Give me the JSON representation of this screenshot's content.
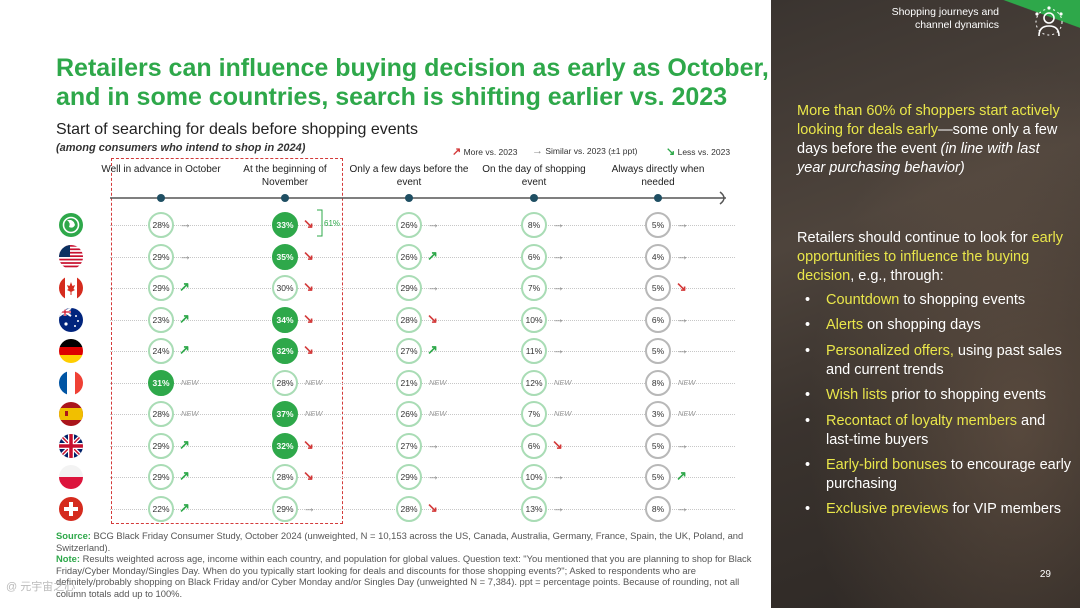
{
  "title_lines": [
    "Retailers can influence buying decision as early as October,",
    "and in some countries, search is shifting earlier vs. 2023"
  ],
  "subtitle": "Start of searching for deals before shopping events",
  "subnote": "(among consumers who intend to shop in 2024)",
  "legend": {
    "more": "More vs. 2023",
    "similar": "Similar vs. 2023 (±1 ppt)",
    "less": "Less vs. 2023"
  },
  "columns": [
    {
      "label": "Well in advance in October"
    },
    {
      "label": "At the beginning of November"
    },
    {
      "label": "Only a few days before the event"
    },
    {
      "label": "On the day of shopping event"
    },
    {
      "label": "Always directly when needed"
    }
  ],
  "bracket_label": "61%",
  "new_label": "NEW",
  "chart_data": {
    "type": "table",
    "columns": [
      "Well in advance in October",
      "At the beginning of November",
      "Only a few days before the event",
      "On the day of shopping event",
      "Always directly when needed"
    ],
    "rows": [
      {
        "flag": "globe-icon",
        "values": [
          "28%",
          "33%",
          "26%",
          "8%",
          "5%"
        ],
        "trend": [
          "same",
          "down",
          "same",
          "same",
          "same"
        ],
        "highlight": [
          false,
          true,
          false,
          false,
          false
        ]
      },
      {
        "flag": "us-flag-icon",
        "values": [
          "29%",
          "35%",
          "26%",
          "6%",
          "4%"
        ],
        "trend": [
          "same",
          "down",
          "up",
          "same",
          "same"
        ],
        "highlight": [
          false,
          true,
          false,
          false,
          false
        ]
      },
      {
        "flag": "canada-flag-icon",
        "values": [
          "29%",
          "30%",
          "29%",
          "7%",
          "5%"
        ],
        "trend": [
          "up",
          "down",
          "same",
          "same",
          "down"
        ],
        "highlight": [
          false,
          false,
          false,
          false,
          false
        ]
      },
      {
        "flag": "australia-flag-icon",
        "values": [
          "23%",
          "34%",
          "28%",
          "10%",
          "6%"
        ],
        "trend": [
          "up",
          "down",
          "down",
          "same",
          "same"
        ],
        "highlight": [
          false,
          true,
          false,
          false,
          false
        ]
      },
      {
        "flag": "germany-flag-icon",
        "values": [
          "24%",
          "32%",
          "27%",
          "11%",
          "5%"
        ],
        "trend": [
          "up",
          "down",
          "up",
          "same",
          "same"
        ],
        "highlight": [
          false,
          true,
          false,
          false,
          false
        ]
      },
      {
        "flag": "france-flag-icon",
        "values": [
          "31%",
          "28%",
          "21%",
          "12%",
          "8%"
        ],
        "trend": [
          "new",
          "new",
          "new",
          "new",
          "new"
        ],
        "highlight": [
          true,
          false,
          false,
          false,
          false
        ]
      },
      {
        "flag": "spain-flag-icon",
        "values": [
          "28%",
          "37%",
          "26%",
          "7%",
          "3%"
        ],
        "trend": [
          "new",
          "new",
          "new",
          "new",
          "new"
        ],
        "highlight": [
          false,
          true,
          false,
          false,
          false
        ]
      },
      {
        "flag": "uk-flag-icon",
        "values": [
          "29%",
          "32%",
          "27%",
          "6%",
          "5%"
        ],
        "trend": [
          "up",
          "down",
          "same",
          "down",
          "same"
        ],
        "highlight": [
          false,
          true,
          false,
          false,
          false
        ]
      },
      {
        "flag": "poland-flag-icon",
        "values": [
          "29%",
          "28%",
          "29%",
          "10%",
          "5%"
        ],
        "trend": [
          "up",
          "down",
          "same",
          "same",
          "up"
        ],
        "highlight": [
          false,
          false,
          false,
          false,
          false
        ]
      },
      {
        "flag": "switzerland-flag-icon",
        "values": [
          "22%",
          "29%",
          "28%",
          "13%",
          "8%"
        ],
        "trend": [
          "up",
          "same",
          "down",
          "same",
          "same"
        ],
        "highlight": [
          false,
          false,
          false,
          false,
          false
        ]
      }
    ]
  },
  "footer": {
    "source_label": "Source:",
    "source_text": "BCG Black Friday Consumer Study, October 2024 (unweighted, N = 10,153 across the US, Canada, Australia, Germany, France, Spain, the UK, Poland, and Switzerland).",
    "note_label": "Note:",
    "note_text": "Results weighted across age, income within each country, and population for global values. Question text: \"You mentioned that you are planning to shop for Black Friday/Cyber Monday/Singles Day. When do you typically start looking for deals and discounts for those shopping events?\"; Asked to respondents who are definitely/probably shopping on Black Friday and/or Cyber Monday and/or Singles Day (unweighted N = 7,384). ppt = percentage points. Because of rounding, not all column totals add up to 100%."
  },
  "panel": {
    "section_title": "Shopping journeys and channel dynamics",
    "p1_highlight": "More than 60% of shoppers start actively looking for deals early",
    "p1_rest": "—some only a few days before the event",
    "p1_italic": " (in line with last year purchasing behavior)",
    "p2_start": "Retailers should continue to look for ",
    "p2_highlight": "early opportunities to influence the buying decision",
    "p2_end": ", e.g., through:",
    "bullets": [
      {
        "hl": "Countdown",
        "rest": " to shopping events"
      },
      {
        "hl": "Alerts",
        "rest": " on shopping days"
      },
      {
        "hl": "Personalized offers,",
        "rest": " using past sales and current trends"
      },
      {
        "hl": "Wish lists",
        "rest": " prior to shopping events"
      },
      {
        "hl": "Recontact of loyalty members",
        "rest": " and last-time buyers"
      },
      {
        "hl": "Early-bird bonuses",
        "rest": " to encourage early purchasing"
      },
      {
        "hl": "Exclusive previews",
        "rest": " for VIP members"
      }
    ],
    "page_number": "29"
  },
  "watermark": "@ 元宇宙之心"
}
